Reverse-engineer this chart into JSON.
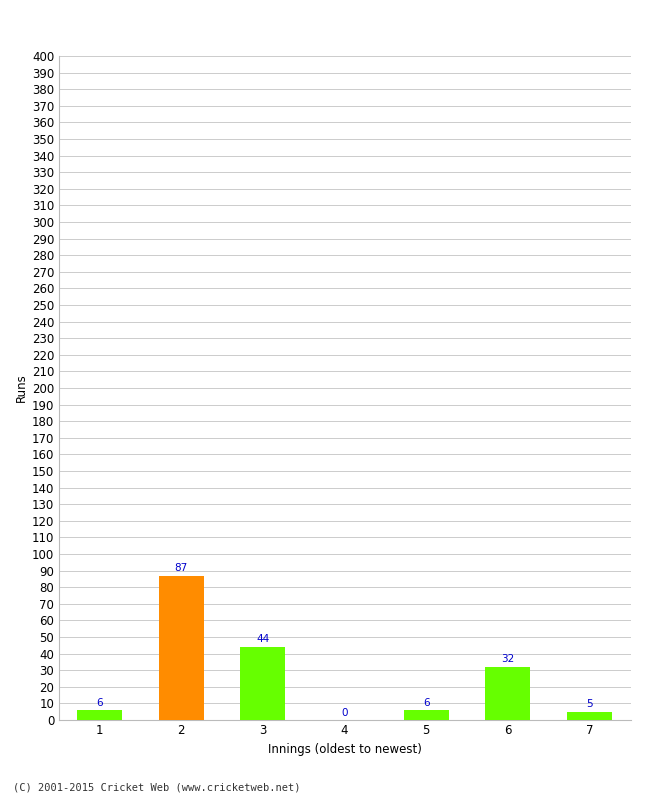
{
  "xlabel": "Innings (oldest to newest)",
  "ylabel": "Runs",
  "categories": [
    "1",
    "2",
    "3",
    "4",
    "5",
    "6",
    "7"
  ],
  "values": [
    6,
    87,
    44,
    0,
    6,
    32,
    5
  ],
  "bar_colors": [
    "#66ff00",
    "#ff8c00",
    "#66ff00",
    "#66ff00",
    "#66ff00",
    "#66ff00",
    "#66ff00"
  ],
  "ylim": [
    0,
    400
  ],
  "ytick_step": 10,
  "ytick_label_step": 10,
  "label_color": "#0000cc",
  "label_fontsize": 7.5,
  "axis_fontsize": 8.5,
  "footer_text": "(C) 2001-2015 Cricket Web (www.cricketweb.net)",
  "background_color": "#ffffff",
  "grid_color": "#cccccc",
  "bar_width": 0.55
}
